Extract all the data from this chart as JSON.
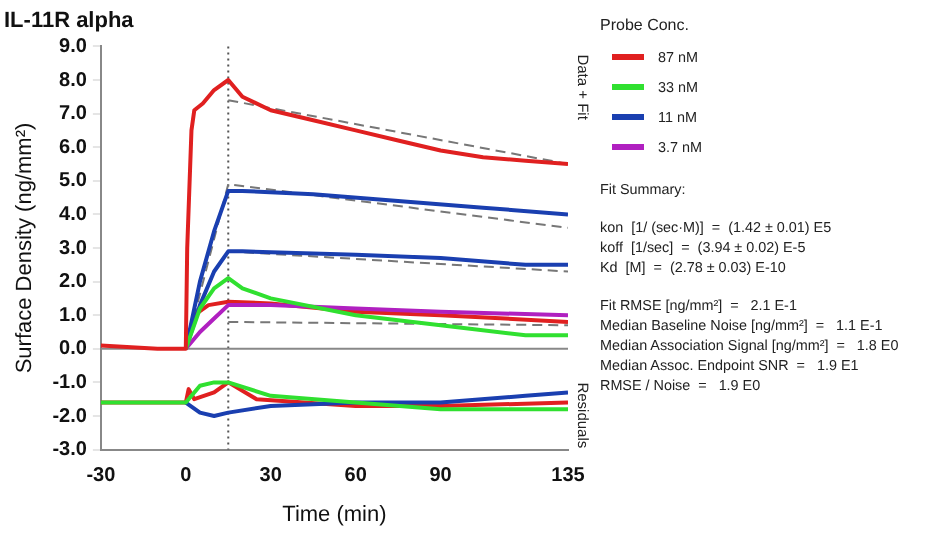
{
  "chart_data": {
    "type": "line",
    "title": "IL-11R alpha",
    "xlabel": "Time (min)",
    "ylabel": "Surface Density (ng/mm²)",
    "legend_title": "Probe Conc.",
    "legend": "right",
    "grid": false,
    "marker": "none",
    "line_style": "solid",
    "xlim": [
      -30,
      135
    ],
    "xticks": [
      -30,
      0,
      30,
      60,
      90,
      135
    ],
    "ylim": [
      -3,
      9
    ],
    "yticks": [
      {
        "value": -3,
        "label": "-3.0"
      },
      {
        "value": -2,
        "label": "-2.0"
      },
      {
        "value": -1,
        "label": "-1.0"
      },
      {
        "value": 0,
        "label": "0.0"
      },
      {
        "value": 1,
        "label": "1.0"
      },
      {
        "value": 2,
        "label": "2.0"
      },
      {
        "value": 3,
        "label": "3.0"
      },
      {
        "value": 4,
        "label": "4.0"
      },
      {
        "value": 5,
        "label": "5.0"
      },
      {
        "value": 6,
        "label": "6.0"
      },
      {
        "value": 7,
        "label": "7.0"
      },
      {
        "value": 8,
        "label": "8.0"
      },
      {
        "value": 9,
        "label": "9.0"
      }
    ],
    "ref_lines": [
      {
        "axis": "x",
        "value": 15,
        "color": "#555555",
        "line_style": "dotted"
      },
      {
        "axis": "y",
        "value": 0,
        "color": "#888888",
        "line_style": "solid"
      }
    ],
    "series": [
      {
        "name": "87 nM",
        "color": "#e02020",
        "x": [
          -30,
          -10,
          0,
          0.5,
          2,
          3,
          6,
          10,
          15,
          20,
          30,
          45,
          60,
          75,
          90,
          105,
          120,
          135
        ],
        "values": [
          0.1,
          0.0,
          0.0,
          3,
          6.5,
          7.1,
          7.3,
          7.7,
          8.0,
          7.5,
          7.1,
          6.8,
          6.5,
          6.2,
          5.9,
          5.7,
          5.6,
          5.5
        ]
      },
      {
        "name": "33 nM",
        "color": "#30e030",
        "x": [
          0,
          5,
          10,
          15,
          20,
          30,
          60,
          90,
          120,
          135
        ],
        "values": [
          0,
          1.2,
          1.8,
          2.1,
          1.8,
          1.5,
          1.0,
          0.7,
          0.4,
          0.4
        ]
      },
      {
        "name": "11 nM",
        "color": "#1a3fb0",
        "x": [
          0,
          5,
          10,
          15,
          20,
          45,
          75,
          105,
          135
        ],
        "values": [
          0,
          2.0,
          3.5,
          4.7,
          4.7,
          4.6,
          4.4,
          4.2,
          4.0
        ]
      },
      {
        "name": "3.7 nM",
        "color": "#b020c0",
        "x": [
          0,
          5,
          10,
          15,
          30,
          60,
          90,
          135
        ],
        "values": [
          0,
          0.5,
          0.9,
          1.3,
          1.3,
          1.2,
          1.1,
          1.0
        ]
      },
      {
        "color": "#1a3fb0",
        "x": [
          0,
          5,
          10,
          15,
          20,
          60,
          90,
          120,
          135
        ],
        "values": [
          0,
          1.3,
          2.3,
          2.9,
          2.9,
          2.8,
          2.7,
          2.5,
          2.5
        ]
      },
      {
        "color": "#e02020",
        "x": [
          0,
          3,
          8,
          15,
          30,
          60,
          90,
          135
        ],
        "values": [
          0,
          1.0,
          1.3,
          1.4,
          1.35,
          1.1,
          1.0,
          0.8
        ]
      },
      {
        "color": "#777777",
        "line_style": "dashed",
        "x": [
          15,
          135
        ],
        "values": [
          7.4,
          5.5
        ]
      },
      {
        "color": "#777777",
        "line_style": "dashed",
        "x": [
          0,
          15,
          135
        ],
        "values": [
          0,
          4.9,
          3.6
        ]
      },
      {
        "color": "#777777",
        "line_style": "dashed",
        "x": [
          15,
          135
        ],
        "values": [
          2.9,
          2.3
        ]
      },
      {
        "color": "#777777",
        "line_style": "dashed",
        "x": [
          15,
          135
        ],
        "values": [
          0.8,
          0.7
        ]
      },
      {
        "color": "#30e030",
        "x": [
          -30,
          0,
          5,
          10,
          15,
          30,
          60,
          90,
          135
        ],
        "values": [
          -1.6,
          -1.6,
          -1.1,
          -1.0,
          -1.0,
          -1.4,
          -1.6,
          -1.8,
          -1.8
        ]
      },
      {
        "color": "#1a3fb0",
        "x": [
          0,
          5,
          10,
          15,
          30,
          60,
          90,
          120,
          135
        ],
        "values": [
          -1.6,
          -1.9,
          -2.0,
          -1.9,
          -1.7,
          -1.6,
          -1.6,
          -1.4,
          -1.3
        ]
      },
      {
        "color": "#e02020",
        "x": [
          -30,
          0,
          1,
          3,
          10,
          15,
          25,
          60,
          90,
          135
        ],
        "values": [
          -1.6,
          -1.6,
          -1.2,
          -1.5,
          -1.3,
          -1.0,
          -1.5,
          -1.7,
          -1.7,
          -1.6
        ]
      }
    ],
    "annotations": [
      "Data + Fit",
      "Residuals",
      "Fit Summary:",
      "kon  [1/ (sec·M)]  =  (1.42 ± 0.01) E5",
      "koff  [1/sec]  =  (3.94 ± 0.02) E-5",
      "Kd  [M]  =  (2.78 ± 0.03) E-10",
      "Fit RMSE [ng/mm²]  =   2.1 E-1",
      "Median Baseline Noise [ng/mm²]  =   1.1 E-1",
      "Median Association Signal [ng/mm²]  =   1.8 E0",
      "Median Assoc. Endpoint SNR  =   1.9 E1",
      "RMSE / Noise  =   1.9 E0"
    ]
  }
}
